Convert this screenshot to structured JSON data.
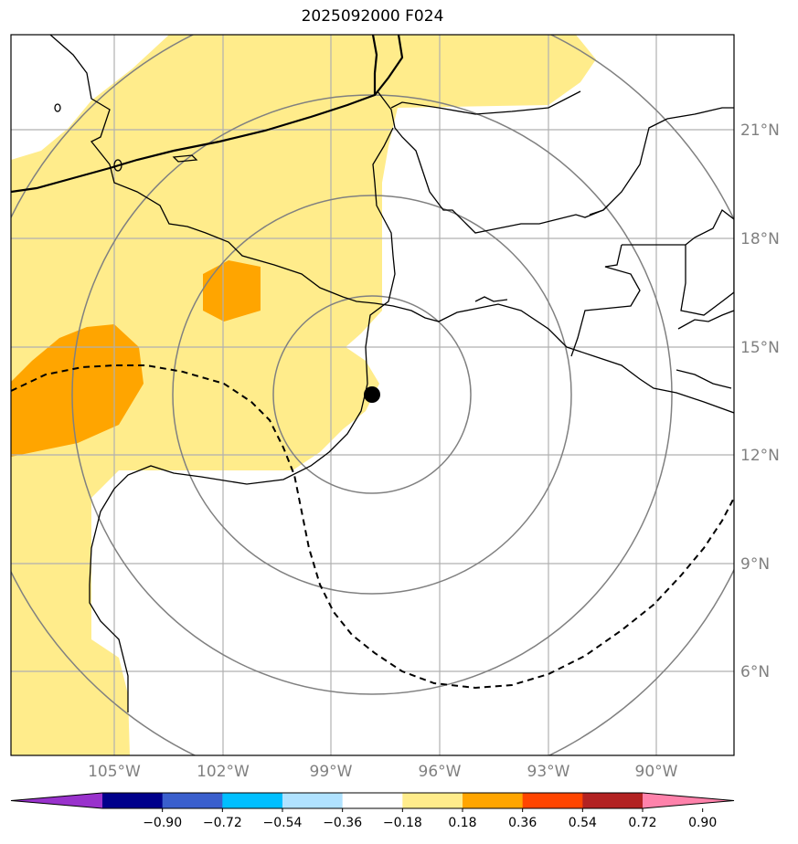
{
  "title": "2025092000 F024",
  "lon_labels": [
    "105°W",
    "102°W",
    "99°W",
    "96°W",
    "93°W",
    "90°W"
  ],
  "lat_labels": [
    "21°N",
    "18°N",
    "15°N",
    "12°N",
    "9°N",
    "6°N"
  ],
  "colorbar": {
    "ticks": [
      "−0.90",
      "−0.72",
      "−0.54",
      "−0.36",
      "−0.18",
      "0.18",
      "0.36",
      "0.54",
      "0.72",
      "0.90"
    ],
    "colors": [
      "#9932cc",
      "#00008b",
      "#3a5fcd",
      "#00bfff",
      "#b0e2ff",
      "#ffffff",
      "#ffec8b",
      "#ffa500",
      "#ff4500",
      "#b22222",
      "#ff82ab"
    ]
  },
  "storm_center": {
    "lon": -97.9,
    "lat": 13.6
  }
}
